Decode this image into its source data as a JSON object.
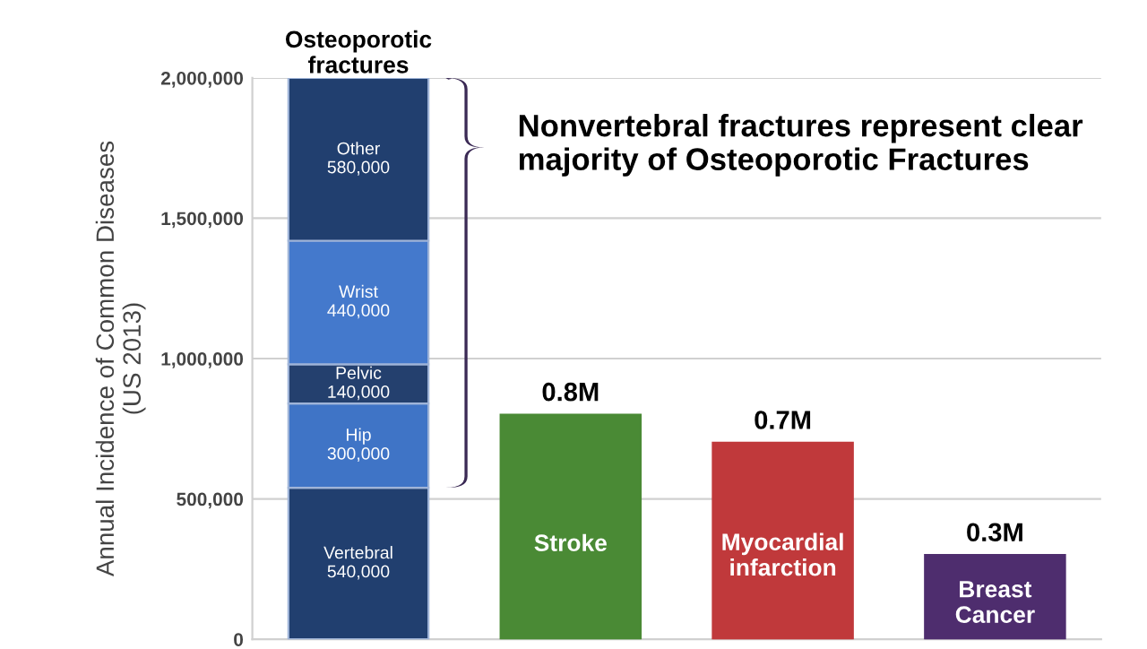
{
  "chart_data": {
    "type": "bar",
    "stacked": true,
    "ylabel": "Annual Incidence of Common Diseases\n(US 2013)",
    "categories": [
      "Osteoporotic fractures",
      "Stroke",
      "Myocardial infarction",
      "Breast Cancer"
    ],
    "series": [
      {
        "name": "Vertebral",
        "colors": [
          "#213f6f",
          "#4a8a35",
          "#c0393b",
          "#4e2d6e"
        ],
        "values": [
          540000,
          800000,
          700000,
          300000
        ],
        "value_labels": [
          "540,000",
          "0.8M",
          "0.7M",
          "0.3M"
        ]
      },
      {
        "name": "Hip",
        "color": "#3f74c6",
        "values": [
          300000,
          null,
          null,
          null
        ],
        "value_labels": [
          "300,000",
          null,
          null,
          null
        ]
      },
      {
        "name": "Pelvic",
        "color": "#24406e",
        "values": [
          140000,
          null,
          null,
          null
        ],
        "value_labels": [
          "140,000",
          null,
          null,
          null
        ]
      },
      {
        "name": "Wrist",
        "color": "#4479cc",
        "values": [
          440000,
          null,
          null,
          null
        ],
        "value_labels": [
          "440,000",
          null,
          null,
          null
        ]
      },
      {
        "name": "Other",
        "color": "#213f6f",
        "values": [
          580000,
          null,
          null,
          null
        ],
        "value_labels": [
          "580,000",
          null,
          null,
          null
        ]
      }
    ],
    "ylim": [
      0,
      2000000
    ],
    "yticks": [
      {
        "value": 0,
        "label": "0"
      },
      {
        "value": 500000,
        "label": "500,000"
      },
      {
        "value": 1000000,
        "label": "1,000,000"
      },
      {
        "value": 1500000,
        "label": "1,500,000"
      },
      {
        "value": 2000000,
        "label": "2,000,000"
      }
    ],
    "grid": "y",
    "annotations": [
      "Nonvertebral fractures represent clear majority of Osteoporotic Fractures"
    ]
  }
}
